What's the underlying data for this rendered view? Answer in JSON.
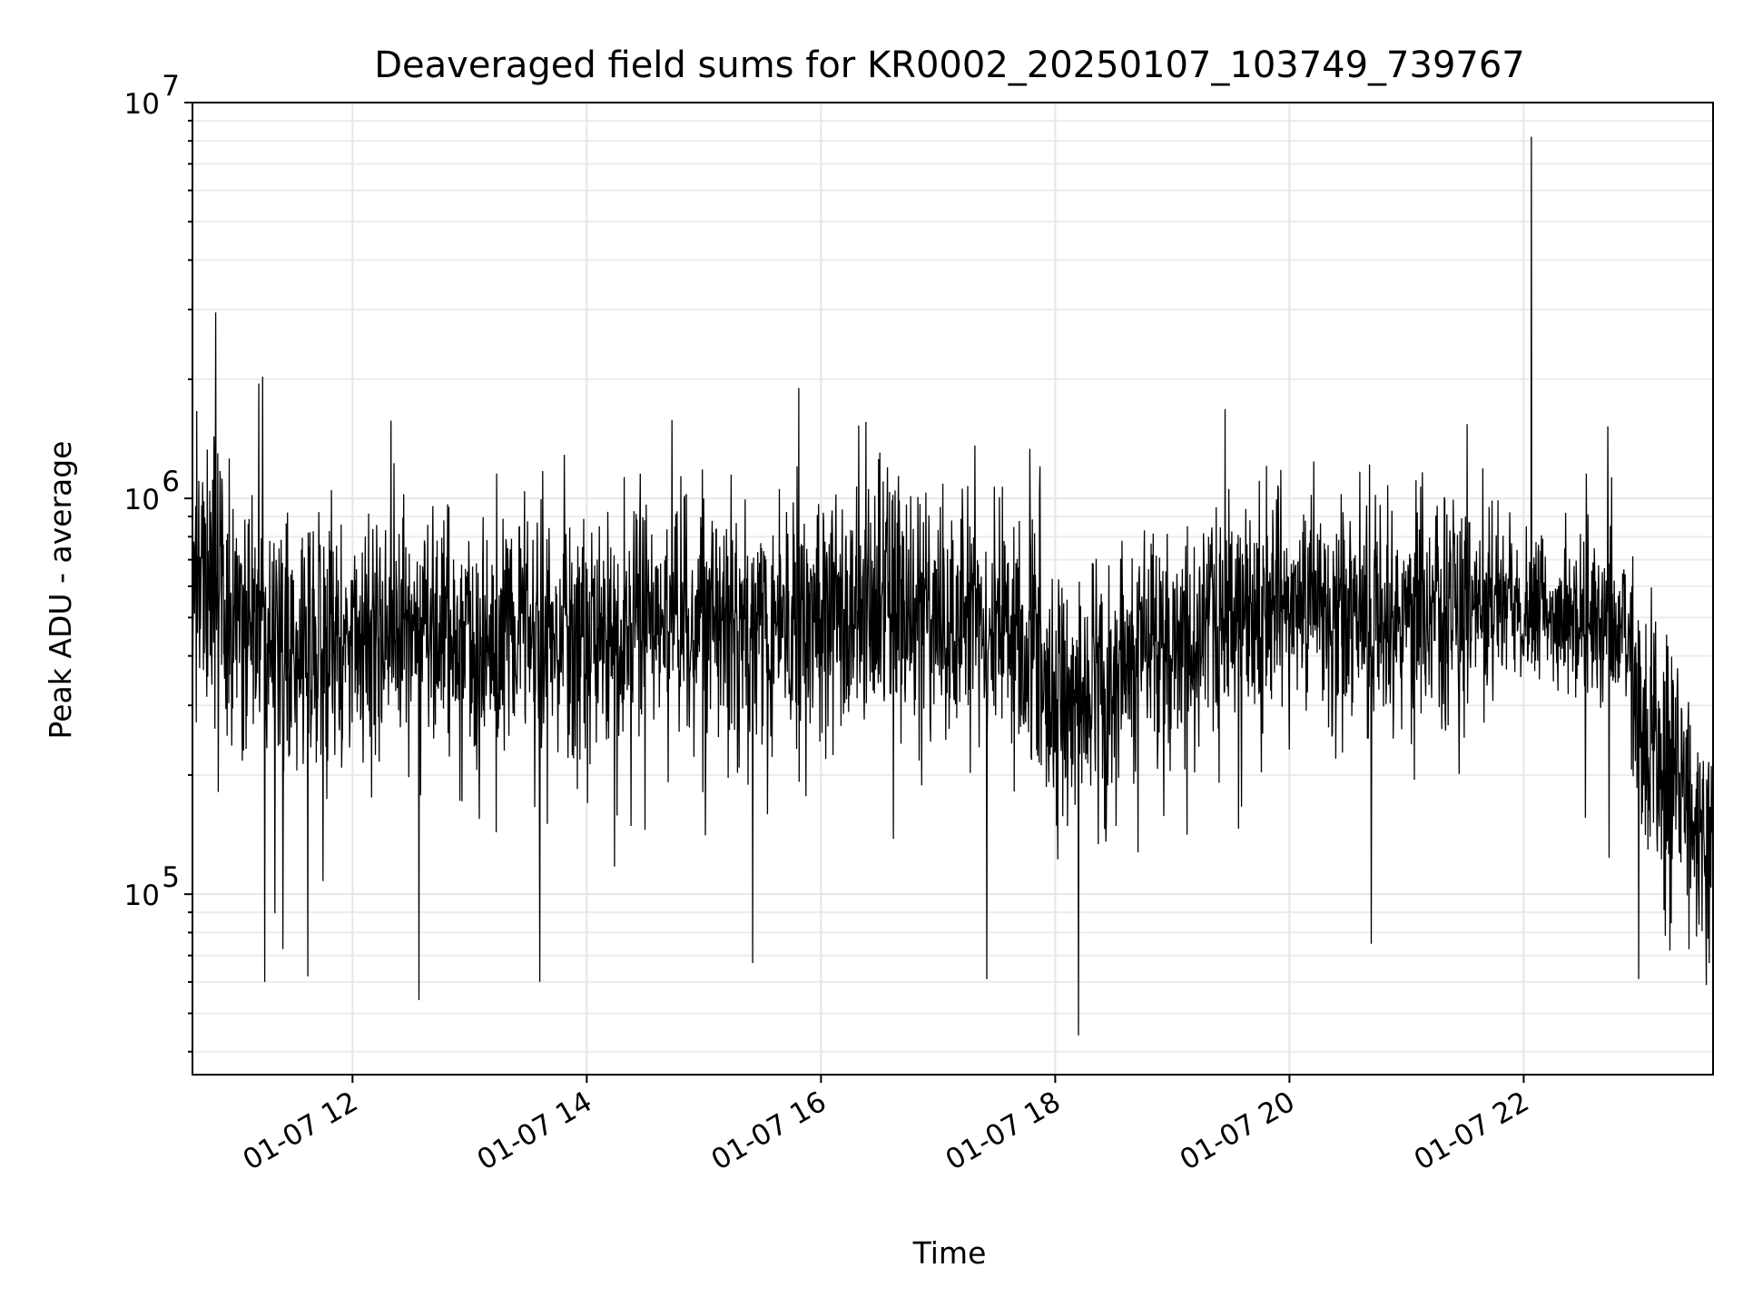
{
  "chart_data": {
    "type": "line",
    "title": "Deaveraged field sums for KR0002_20250107_103749_739767",
    "xlabel": "Time",
    "ylabel": "Peak ADU - average",
    "yscale": "log",
    "xlim": [
      "2025-01-07 10:38",
      "2025-01-07 23:37"
    ],
    "ylim": [
      35000,
      10000000
    ],
    "grid": true,
    "x_ticks": [
      {
        "t": "2025-01-07 12:00",
        "label": "01-07 12"
      },
      {
        "t": "2025-01-07 14:00",
        "label": "01-07 14"
      },
      {
        "t": "2025-01-07 16:00",
        "label": "01-07 16"
      },
      {
        "t": "2025-01-07 18:00",
        "label": "01-07 18"
      },
      {
        "t": "2025-01-07 20:00",
        "label": "01-07 20"
      },
      {
        "t": "2025-01-07 22:00",
        "label": "01-07 22"
      }
    ],
    "y_ticks": [
      {
        "value": 100000,
        "base": "10",
        "exp": "5"
      },
      {
        "value": 1000000,
        "base": "10",
        "exp": "6"
      },
      {
        "value": 10000000,
        "base": "10",
        "exp": "7"
      }
    ],
    "series_color": "#000000",
    "series": [
      {
        "x": [
          "2025-01-07 10:38",
          "2025-01-07 10:45",
          "2025-01-07 10:50",
          "2025-01-07 11:00",
          "2025-01-07 11:15",
          "2025-01-07 11:30",
          "2025-01-07 12:00",
          "2025-01-07 12:30",
          "2025-01-07 13:00",
          "2025-01-07 13:30",
          "2025-01-07 14:00",
          "2025-01-07 14:30",
          "2025-01-07 15:00",
          "2025-01-07 15:30",
          "2025-01-07 16:00",
          "2025-01-07 16:30",
          "2025-01-07 17:00",
          "2025-01-07 17:30",
          "2025-01-07 18:00",
          "2025-01-07 18:30",
          "2025-01-07 19:00",
          "2025-01-07 19:30",
          "2025-01-07 20:00",
          "2025-01-07 20:30",
          "2025-01-07 21:00",
          "2025-01-07 21:30",
          "2025-01-07 21:45",
          "2025-01-07 22:00",
          "2025-01-07 22:03",
          "2025-01-07 22:30",
          "2025-01-07 22:50",
          "2025-01-07 23:00",
          "2025-01-07 23:15",
          "2025-01-07 23:30",
          "2025-01-07 23:37"
        ],
        "y": [
          550000,
          700000,
          650000,
          450000,
          430000,
          410000,
          420000,
          470000,
          420000,
          450000,
          420000,
          480000,
          500000,
          470000,
          500000,
          520000,
          520000,
          480000,
          330000,
          350000,
          430000,
          500000,
          530000,
          540000,
          520000,
          520000,
          540000,
          480000,
          520000,
          500000,
          480000,
          260000,
          200000,
          150000,
          130000
        ],
        "spread": [
          0.32,
          0.4,
          0.38,
          0.3,
          0.28,
          0.28,
          0.28,
          0.28,
          0.28,
          0.28,
          0.28,
          0.28,
          0.28,
          0.27,
          0.27,
          0.27,
          0.27,
          0.28,
          0.3,
          0.3,
          0.28,
          0.27,
          0.27,
          0.27,
          0.27,
          0.27,
          0.22,
          0.18,
          0.18,
          0.18,
          0.2,
          0.28,
          0.3,
          0.3,
          0.3
        ],
        "peaks": [
          {
            "t": "2025-01-07 10:50",
            "y": 2950000
          },
          {
            "t": "2025-01-07 11:12",
            "y": 1950000
          },
          {
            "t": "2025-01-07 11:14",
            "y": 2030000
          },
          {
            "t": "2025-01-07 15:00",
            "y": 1000000
          },
          {
            "t": "2025-01-07 16:23",
            "y": 1560000
          },
          {
            "t": "2025-01-07 19:27",
            "y": 1680000
          },
          {
            "t": "2025-01-07 21:31",
            "y": 1540000
          },
          {
            "t": "2025-01-07 22:04",
            "y": 8200000
          },
          {
            "t": "2025-01-07 22:43",
            "y": 1520000
          }
        ],
        "dips": [
          {
            "t": "2025-01-07 11:15",
            "y": 60000
          },
          {
            "t": "2025-01-07 11:37",
            "y": 62000
          },
          {
            "t": "2025-01-07 12:34",
            "y": 54000
          },
          {
            "t": "2025-01-07 13:36",
            "y": 60000
          },
          {
            "t": "2025-01-07 15:25",
            "y": 67000
          },
          {
            "t": "2025-01-07 17:25",
            "y": 61000
          },
          {
            "t": "2025-01-07 18:12",
            "y": 44000
          },
          {
            "t": "2025-01-07 20:42",
            "y": 75000
          },
          {
            "t": "2025-01-07 22:59",
            "y": 61000
          },
          {
            "t": "2025-01-07 23:35",
            "y": 67000
          }
        ]
      }
    ]
  }
}
